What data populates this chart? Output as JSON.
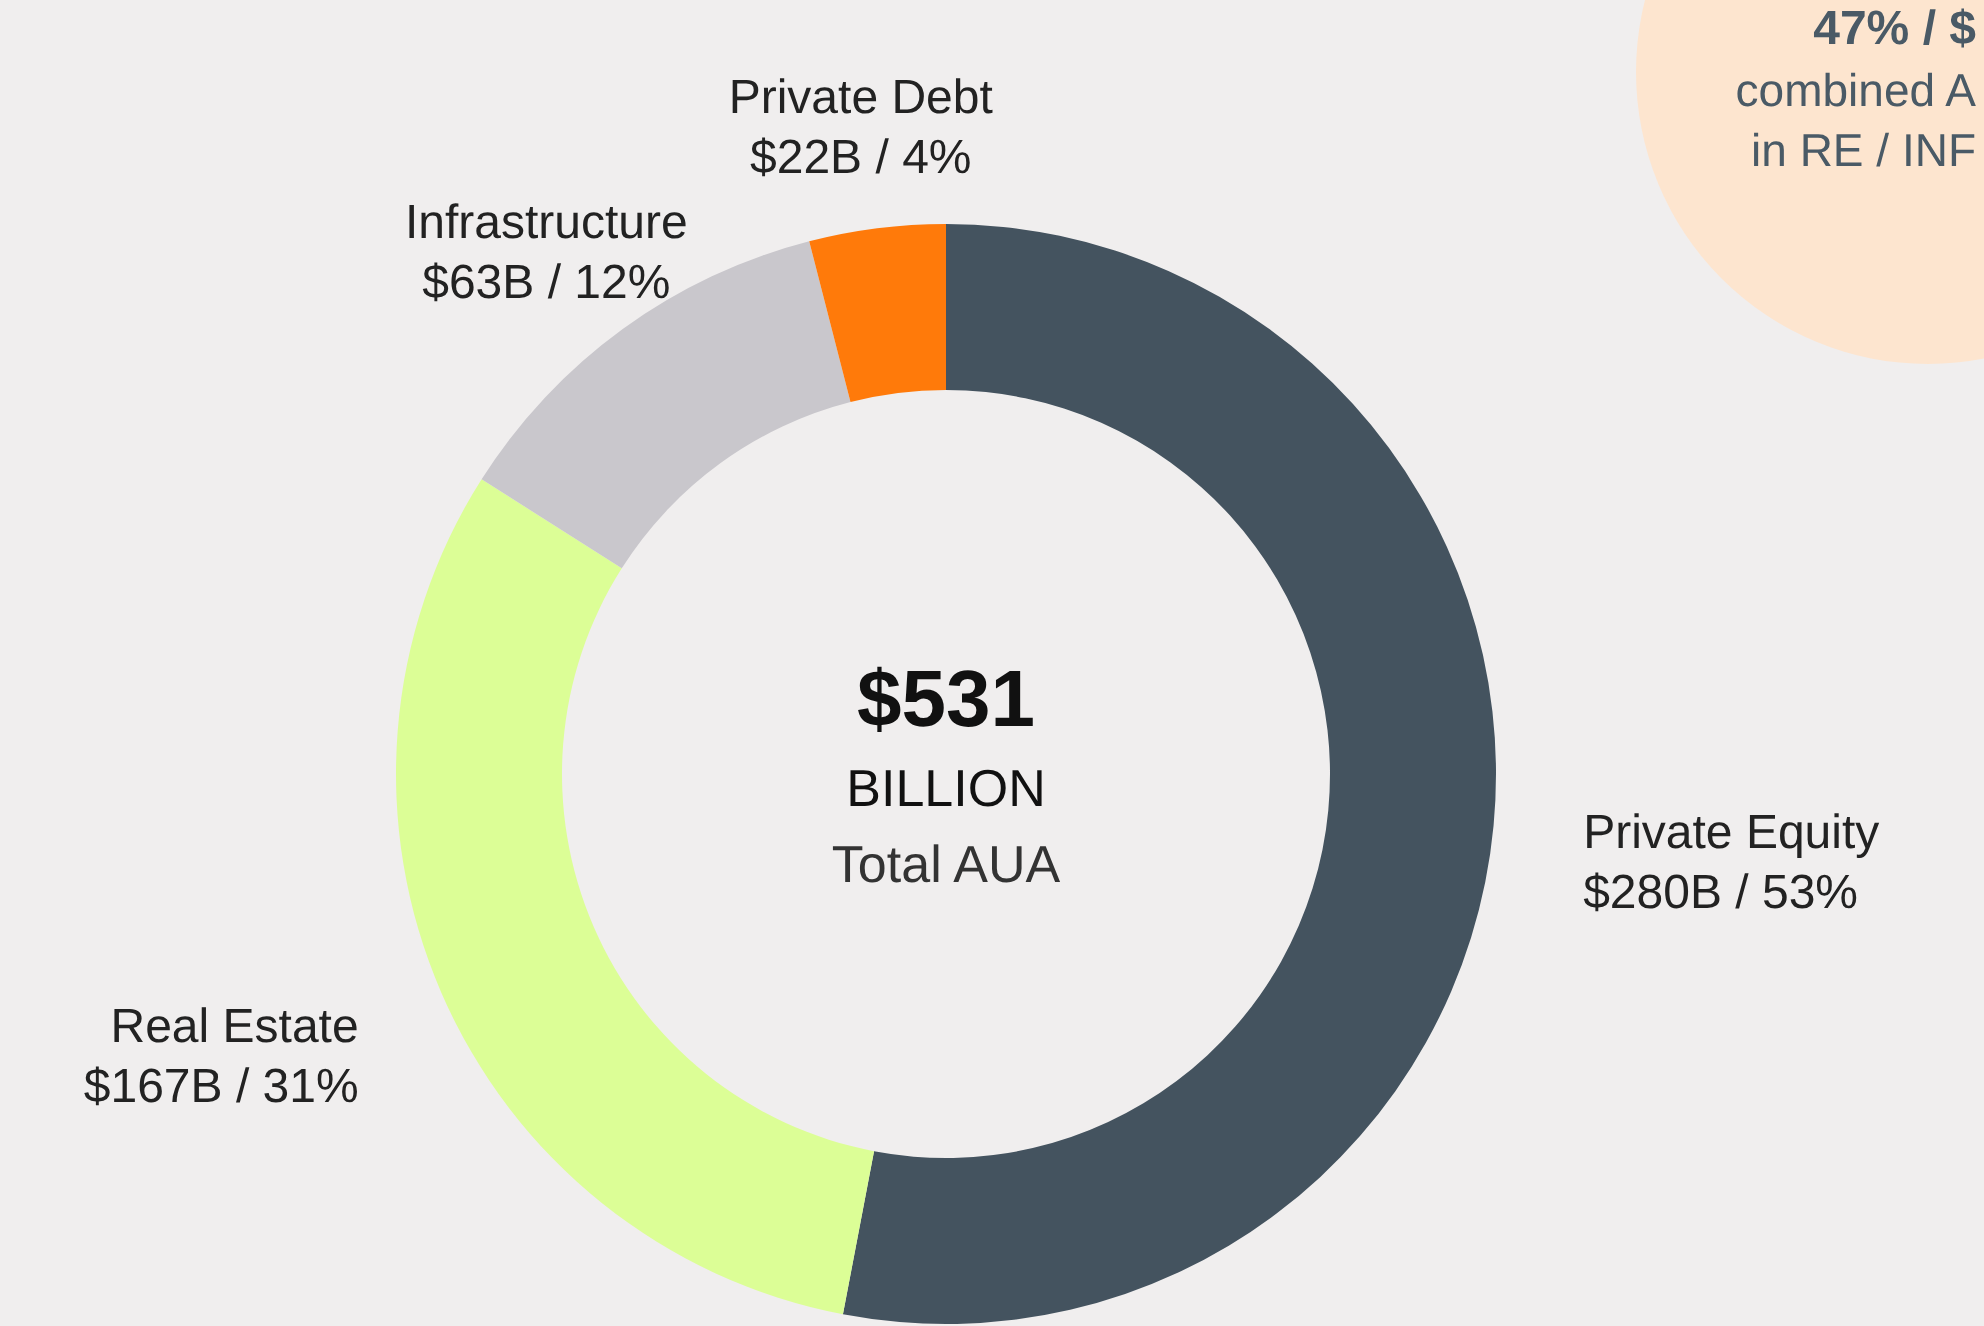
{
  "chart_data": {
    "type": "donut",
    "categories": [
      "Private Equity",
      "Real Estate",
      "Infrastructure",
      "Private Debt"
    ],
    "values": [
      53,
      31,
      12,
      4
    ],
    "colors": [
      "#44535f",
      "#dcfe96",
      "#c9c7cc",
      "#ff7a0a"
    ],
    "value_labels": [
      "$280B / 53%",
      "$167B / 31%",
      "$63B / 12%",
      "$22B / 4%"
    ],
    "annotations": [
      "$531",
      "BILLION",
      "Total AUA",
      "47% / $",
      "combined A",
      "in RE / INF"
    ]
  }
}
